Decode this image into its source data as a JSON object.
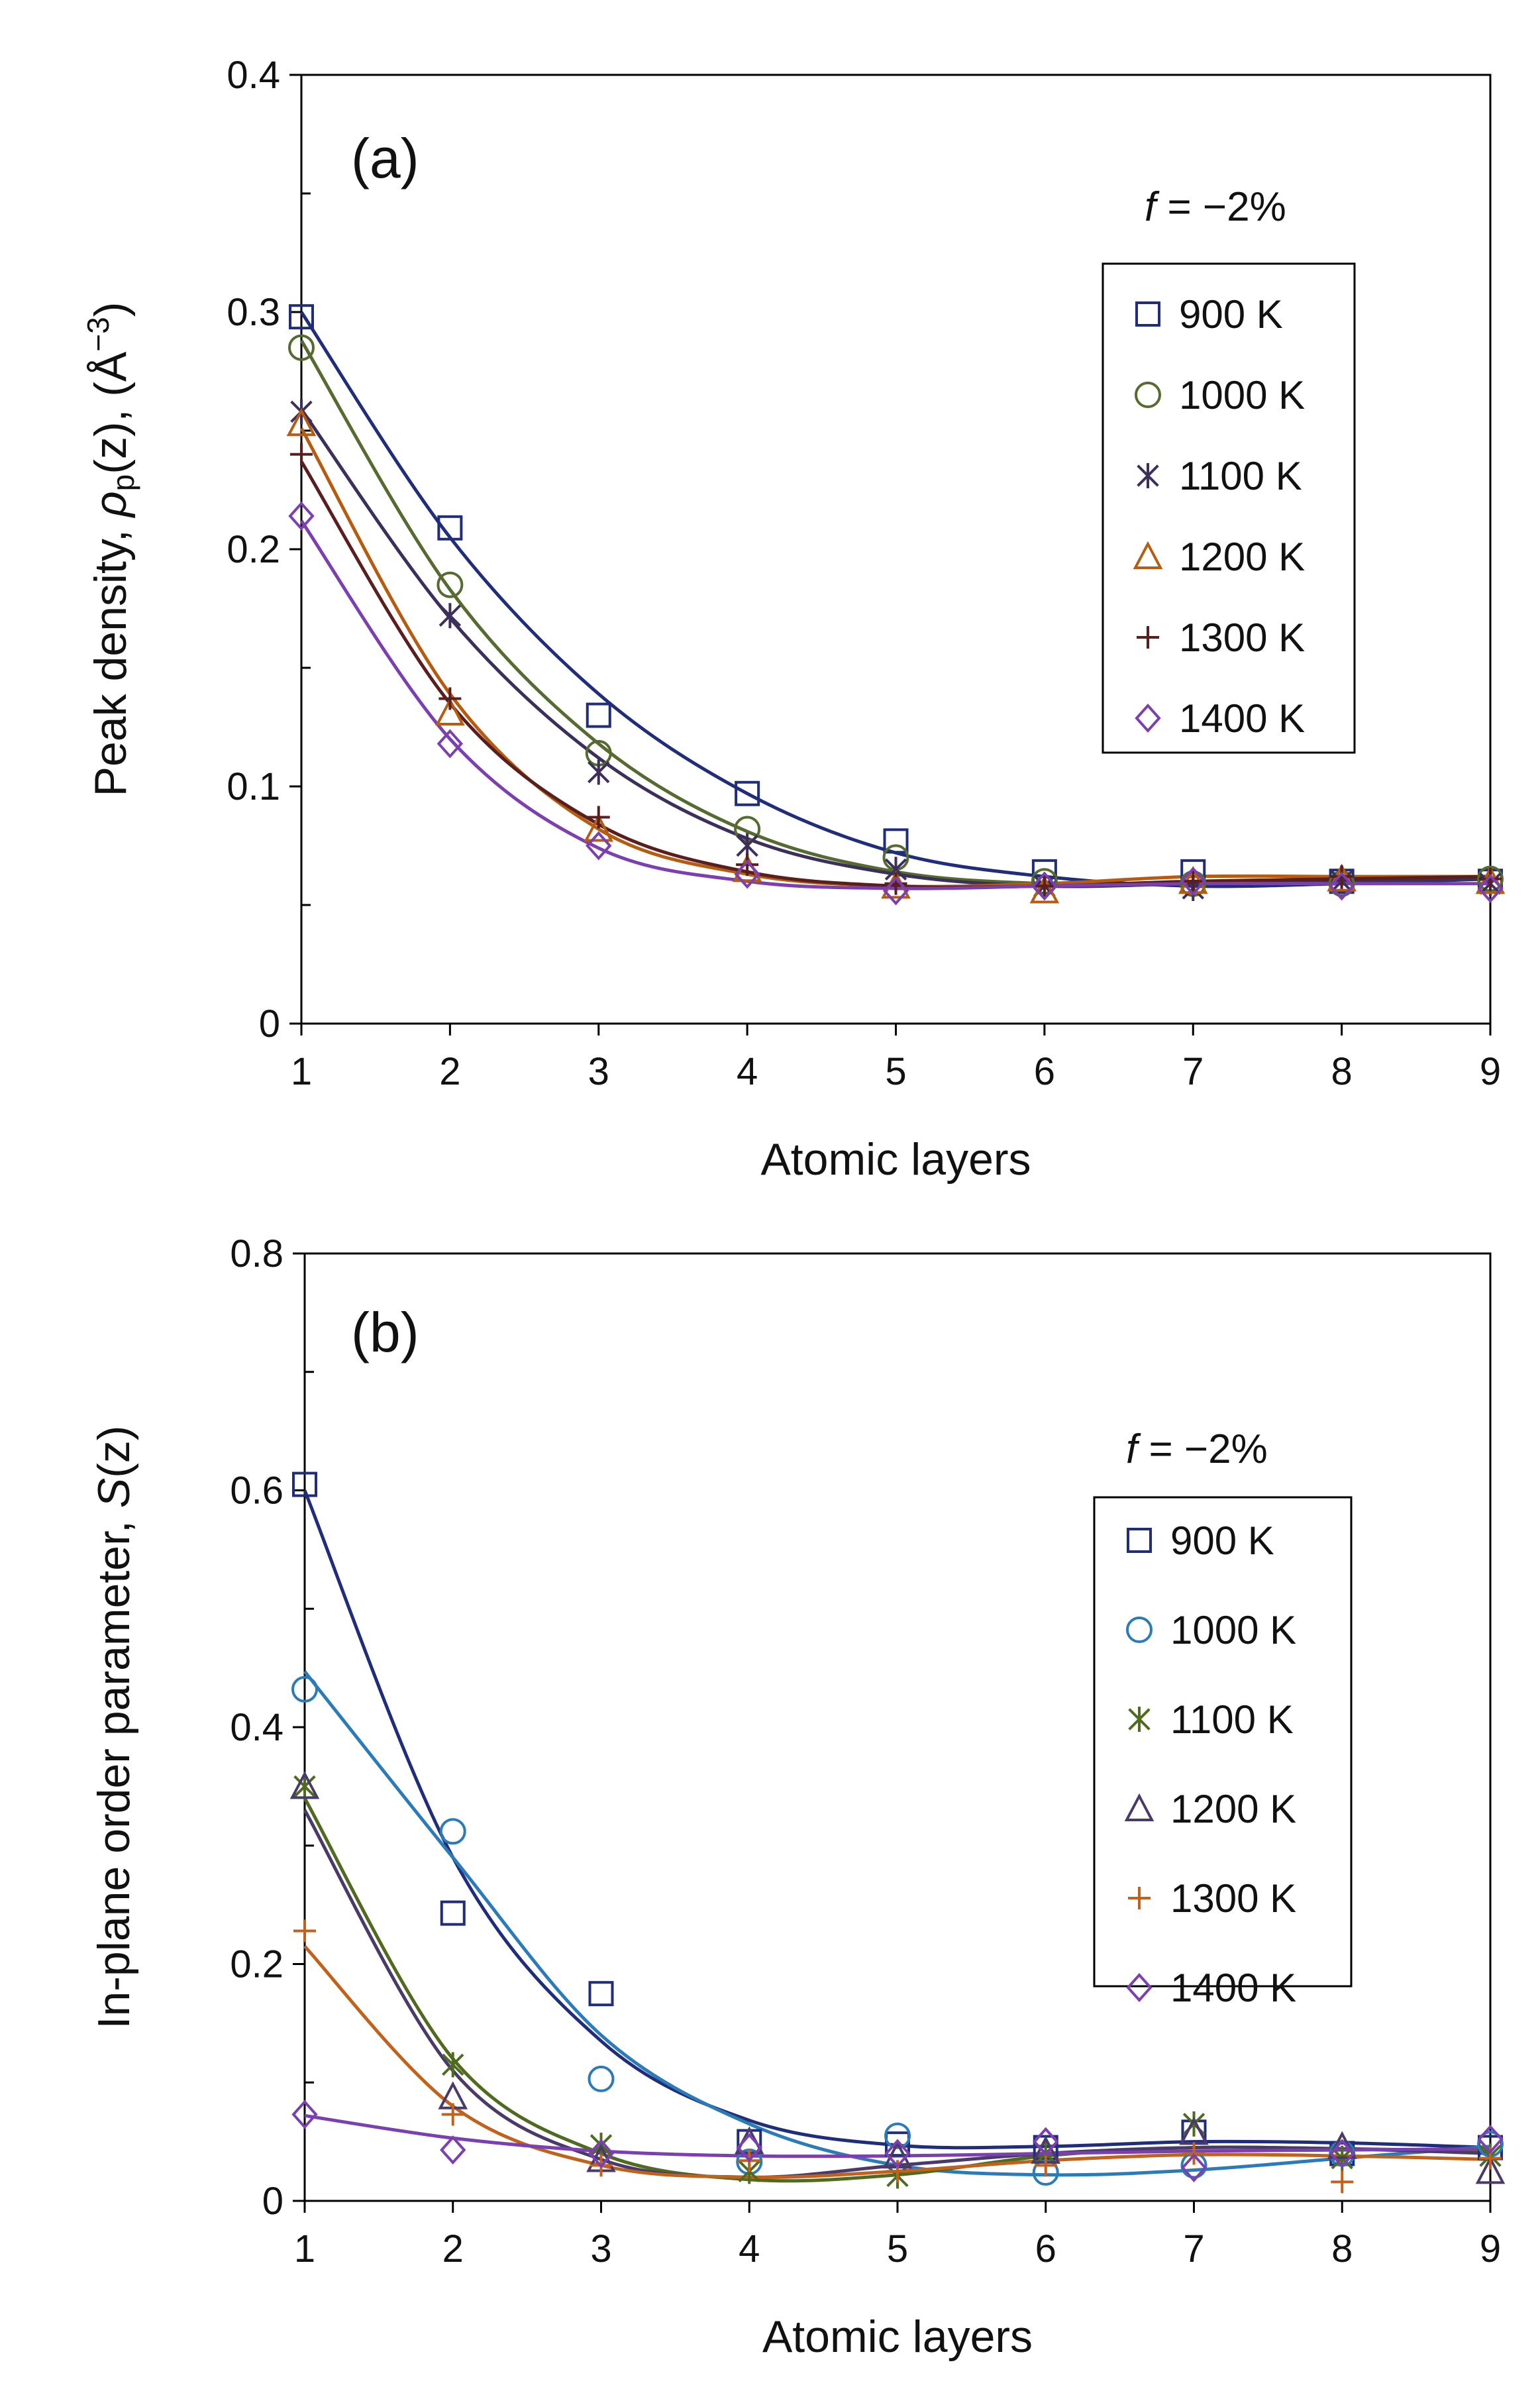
{
  "chart_data": [
    {
      "panel": "a",
      "type": "scatter",
      "panel_label": "(a)",
      "xlabel": "Atomic layers",
      "ylabel_parts": [
        "Peak density, ",
        "ρ",
        "p",
        "(z), (Å",
        "−3",
        ")"
      ],
      "xlim": [
        1,
        9
      ],
      "ylim": [
        0,
        0.4
      ],
      "xticks": [
        "1",
        "2",
        "3",
        "4",
        "5",
        "6",
        "7",
        "8",
        "9"
      ],
      "yticks": [
        "0",
        "0.1",
        "0.2",
        "0.3",
        "0.4"
      ],
      "legend_title_f": "f",
      "legend_title_rest": " = −2%",
      "series": [
        {
          "name": "900 K",
          "marker": "square",
          "color": "#1f2d7a",
          "x": [
            1,
            2,
            3,
            4,
            5,
            6,
            7,
            8,
            9
          ],
          "y": [
            0.298,
            0.209,
            0.13,
            0.097,
            0.077,
            0.064,
            0.064,
            0.06,
            0.06
          ],
          "fit": [
            0.3,
            0.205,
            0.139,
            0.097,
            0.072,
            0.062,
            0.058,
            0.059,
            0.061
          ]
        },
        {
          "name": "1000 K",
          "marker": "circle",
          "color": "#556b2f",
          "x": [
            1,
            2,
            3,
            4,
            5,
            6,
            7,
            8,
            9
          ],
          "y": [
            0.285,
            0.185,
            0.114,
            0.082,
            0.07,
            0.06,
            0.059,
            0.059,
            0.061
          ],
          "fit": [
            0.288,
            0.183,
            0.118,
            0.081,
            0.064,
            0.059,
            0.059,
            0.06,
            0.061
          ]
        },
        {
          "name": "1100 K",
          "marker": "asterisk",
          "color": "#3d2f5c",
          "x": [
            1,
            2,
            3,
            4,
            5,
            6,
            7,
            8,
            9
          ],
          "y": [
            0.258,
            0.172,
            0.106,
            0.075,
            0.065,
            0.058,
            0.057,
            0.06,
            0.059
          ],
          "fit": [
            0.259,
            0.171,
            0.112,
            0.078,
            0.063,
            0.058,
            0.059,
            0.06,
            0.061
          ]
        },
        {
          "name": "1200 K",
          "marker": "triangle",
          "color": "#b65c10",
          "x": [
            1,
            2,
            3,
            4,
            5,
            6,
            7,
            8,
            9
          ],
          "y": [
            0.253,
            0.131,
            0.082,
            0.065,
            0.058,
            0.056,
            0.06,
            0.061,
            0.06
          ],
          "fit": [
            0.251,
            0.139,
            0.082,
            0.063,
            0.058,
            0.059,
            0.062,
            0.062,
            0.062
          ]
        },
        {
          "name": "1300 K",
          "marker": "plus",
          "color": "#5a1e1e",
          "x": [
            1,
            2,
            3,
            4,
            5,
            6,
            7,
            8,
            9
          ],
          "y": [
            0.24,
            0.137,
            0.087,
            0.067,
            0.059,
            0.058,
            0.06,
            0.062,
            0.061
          ],
          "fit": [
            0.237,
            0.135,
            0.084,
            0.064,
            0.058,
            0.058,
            0.06,
            0.061,
            0.062
          ]
        },
        {
          "name": "1400 K",
          "marker": "diamond",
          "color": "#7b3fb0",
          "x": [
            1,
            2,
            3,
            4,
            5,
            6,
            7,
            8,
            9
          ],
          "y": [
            0.214,
            0.118,
            0.075,
            0.063,
            0.056,
            0.058,
            0.06,
            0.058,
            0.057
          ],
          "fit": [
            0.212,
            0.12,
            0.074,
            0.06,
            0.057,
            0.058,
            0.059,
            0.059,
            0.059
          ]
        }
      ]
    },
    {
      "panel": "b",
      "type": "scatter",
      "panel_label": "(b)",
      "xlabel": "Atomic layers",
      "ylabel_parts": [
        "In-plane order parameter, ",
        "S",
        "(z)"
      ],
      "xlim": [
        1,
        9
      ],
      "ylim": [
        0,
        0.8
      ],
      "xticks": [
        "1",
        "2",
        "3",
        "4",
        "5",
        "6",
        "7",
        "8",
        "9"
      ],
      "yticks": [
        "0",
        "0.2",
        "0.4",
        "0.6",
        "0.8"
      ],
      "legend_title_f": "f",
      "legend_title_rest": " = −2%",
      "series": [
        {
          "name": "900 K",
          "marker": "square",
          "color": "#1f2d7a",
          "x": [
            1,
            2,
            3,
            4,
            5,
            6,
            7,
            8,
            9
          ],
          "y": [
            0.605,
            0.243,
            0.175,
            0.05,
            0.048,
            0.045,
            0.058,
            0.04,
            0.045
          ],
          "fit": [
            0.6,
            0.29,
            0.135,
            0.068,
            0.047,
            0.046,
            0.05,
            0.049,
            0.045
          ]
        },
        {
          "name": "1000 K",
          "marker": "circle",
          "color": "#2b7bb9",
          "x": [
            1,
            2,
            3,
            4,
            5,
            6,
            7,
            8,
            9
          ],
          "y": [
            0.432,
            0.312,
            0.103,
            0.033,
            0.055,
            0.024,
            0.03,
            0.04,
            0.048
          ],
          "fit": [
            0.447,
            0.29,
            0.14,
            0.065,
            0.03,
            0.022,
            0.026,
            0.036,
            0.046
          ]
        },
        {
          "name": "1100 K",
          "marker": "asterisk",
          "color": "#4f6b1f",
          "x": [
            1,
            2,
            3,
            4,
            5,
            6,
            7,
            8,
            9
          ],
          "y": [
            0.35,
            0.115,
            0.047,
            0.025,
            0.021,
            0.04,
            0.065,
            0.036,
            0.038
          ],
          "fit": [
            0.34,
            0.12,
            0.04,
            0.018,
            0.022,
            0.038,
            0.045,
            0.044,
            0.042
          ]
        },
        {
          "name": "1200 K",
          "marker": "triangle",
          "color": "#4a3a6a",
          "x": [
            1,
            2,
            3,
            4,
            5,
            6,
            7,
            8,
            9
          ],
          "y": [
            0.35,
            0.088,
            0.035,
            0.05,
            0.038,
            0.042,
            0.058,
            0.046,
            0.025
          ],
          "fit": [
            0.33,
            0.11,
            0.035,
            0.02,
            0.03,
            0.04,
            0.045,
            0.044,
            0.04
          ]
        },
        {
          "name": "1300 K",
          "marker": "plus",
          "color": "#c0621c",
          "x": [
            1,
            2,
            3,
            4,
            5,
            6,
            7,
            8,
            9
          ],
          "y": [
            0.228,
            0.073,
            0.03,
            0.034,
            0.025,
            0.03,
            0.04,
            0.016,
            0.036
          ],
          "fit": [
            0.215,
            0.08,
            0.03,
            0.02,
            0.025,
            0.034,
            0.039,
            0.038,
            0.035
          ]
        },
        {
          "name": "1400 K",
          "marker": "diamond",
          "color": "#7b3fb0",
          "x": [
            1,
            2,
            3,
            4,
            5,
            6,
            7,
            8,
            9
          ],
          "y": [
            0.073,
            0.043,
            0.04,
            0.045,
            0.04,
            0.05,
            0.028,
            0.04,
            0.052
          ],
          "fit": [
            0.072,
            0.053,
            0.042,
            0.038,
            0.038,
            0.04,
            0.042,
            0.043,
            0.044
          ]
        }
      ]
    }
  ]
}
